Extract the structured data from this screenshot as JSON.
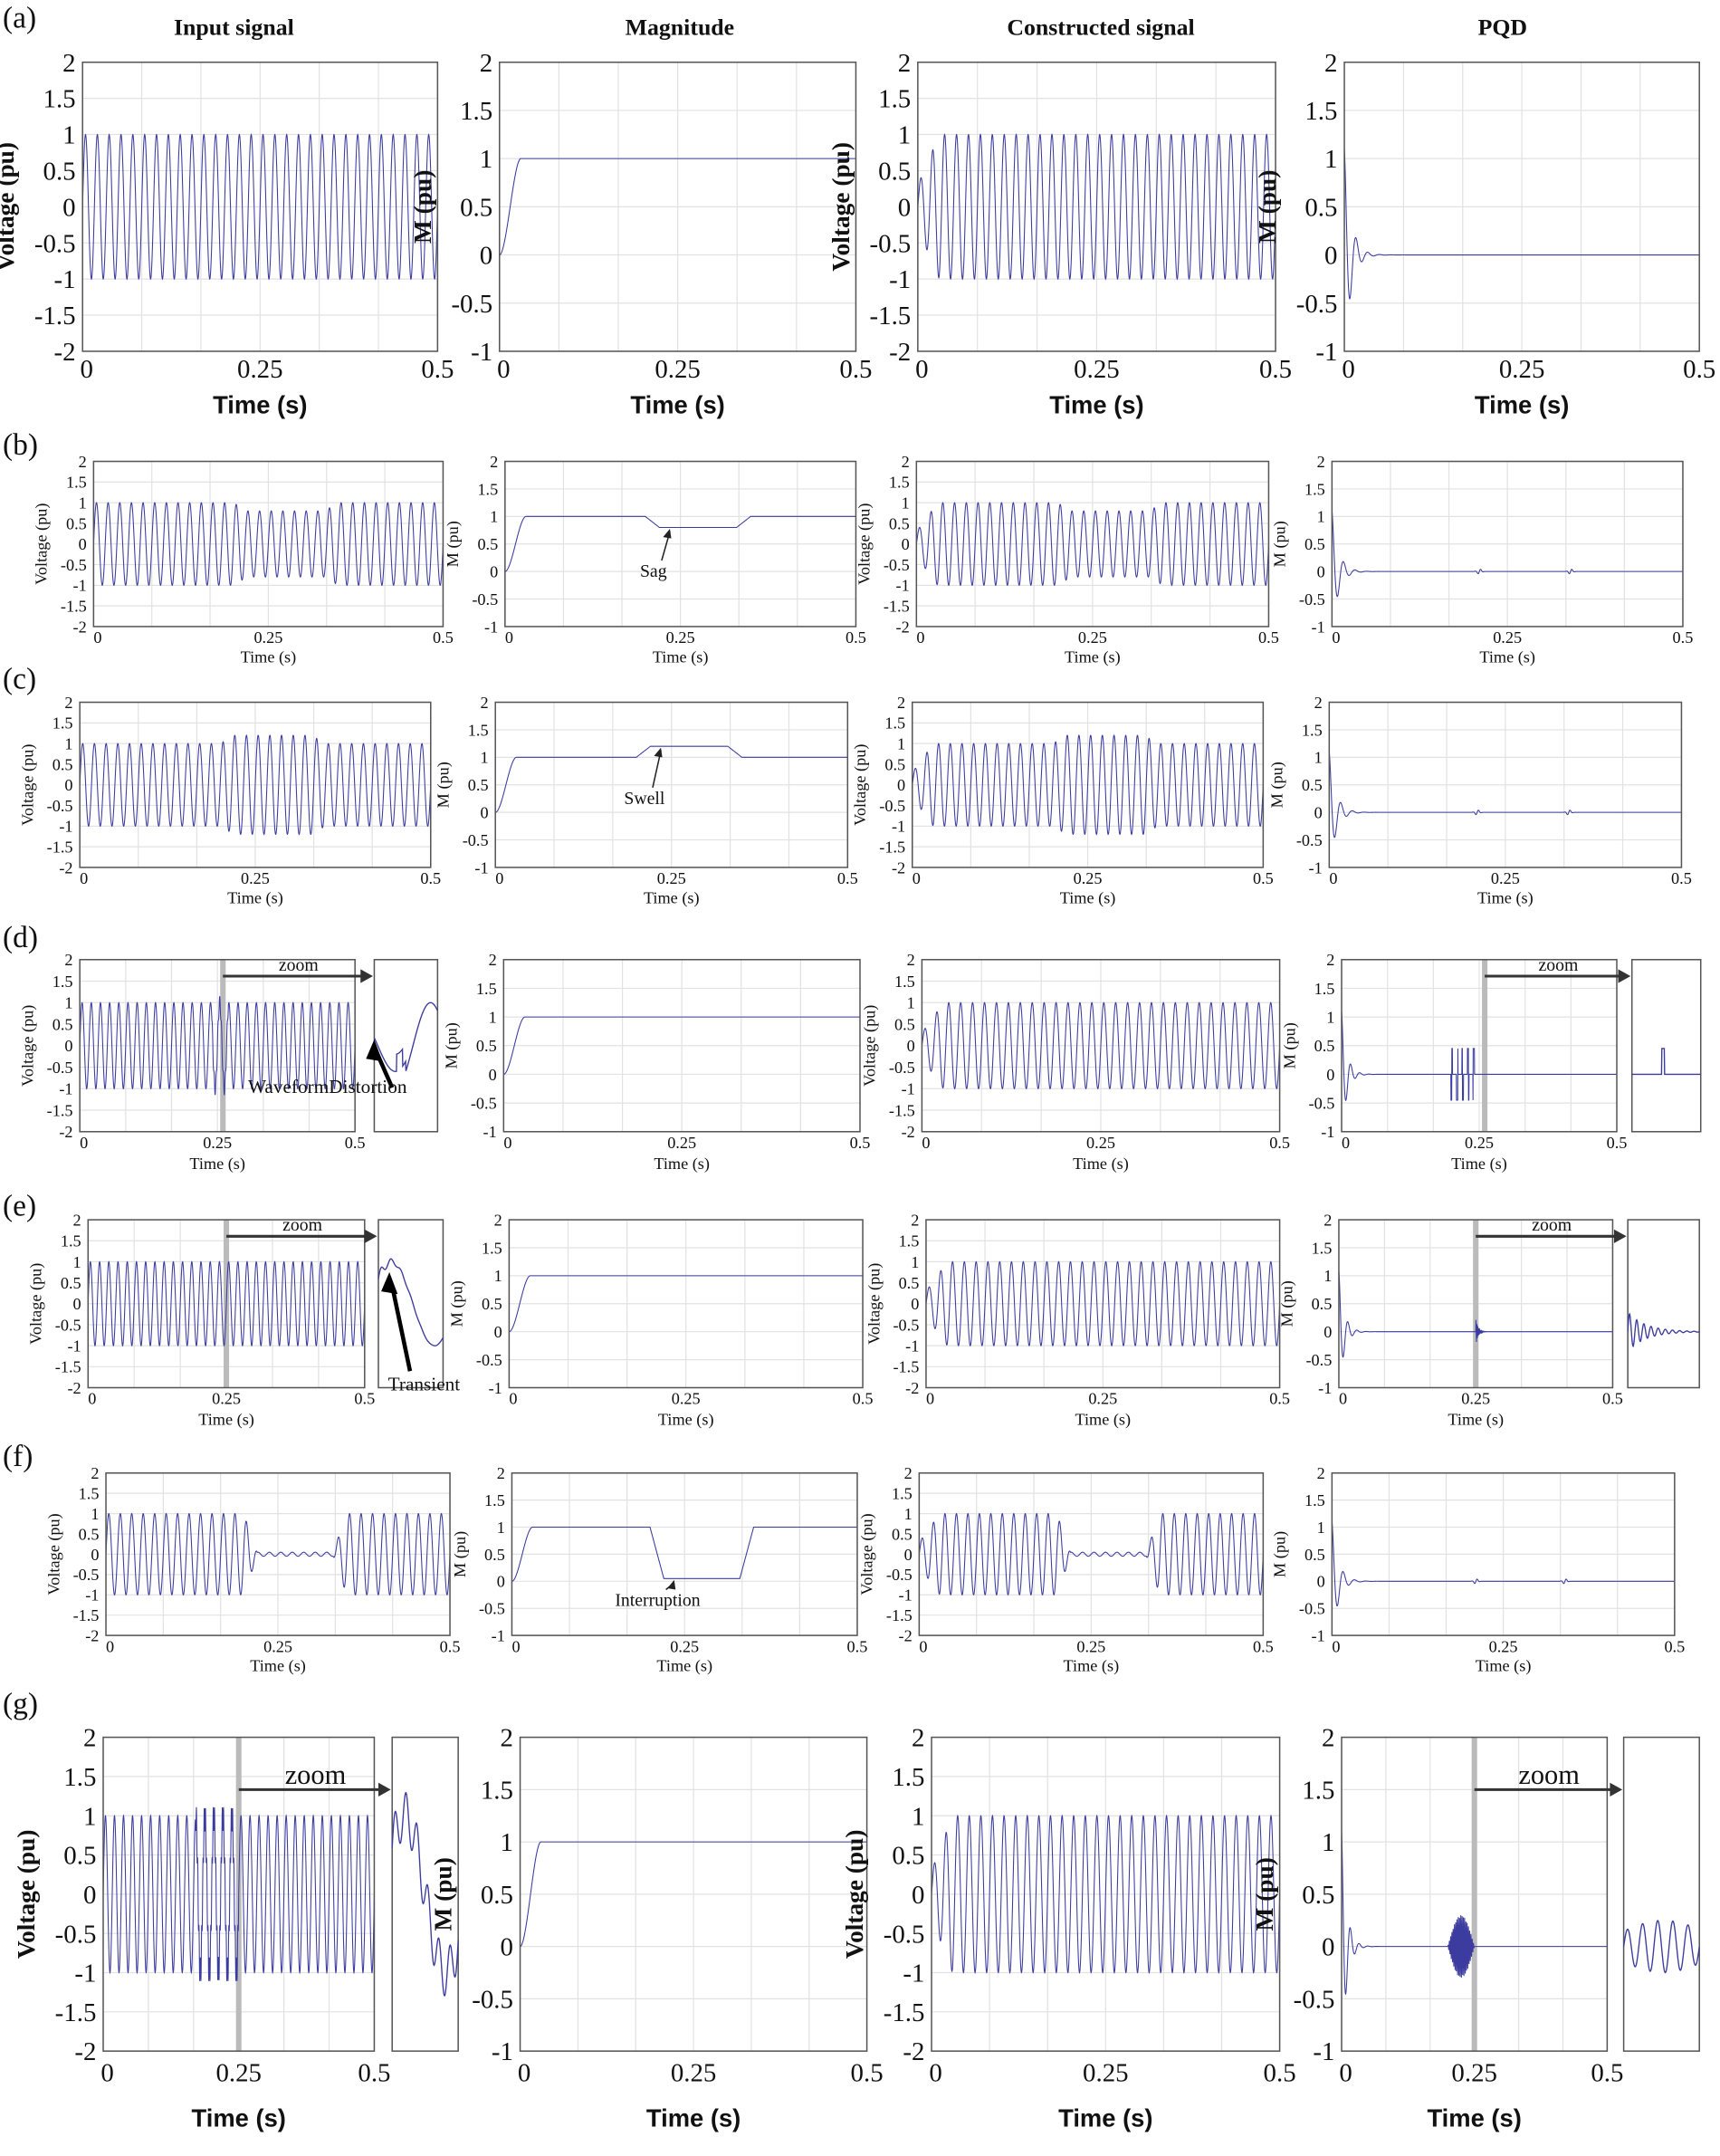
{
  "row_labels": [
    "(a)",
    "(b)",
    "(c)",
    "(d)",
    "(e)",
    "(f)",
    "(g)"
  ],
  "column_titles": [
    "Input signal",
    "Magnitude",
    "Constructed signal",
    "PQD"
  ],
  "xlabel": "Time (s)",
  "ylabel_voltage": "Voltage (pu)",
  "ylabel_magnitude": "M (pu)",
  "zoom_label": "zoom",
  "colors": {
    "trace": "#3c3ca0",
    "grid": "#e2e2e2",
    "frame": "#555555",
    "zoom_marker": "#bbbbbb"
  },
  "chart_data": [
    {
      "row": "(a)",
      "type": "line",
      "frequency_hz": 60,
      "envelope": [
        [
          0,
          1
        ],
        [
          0.5,
          1
        ]
      ],
      "annotation": ""
    },
    {
      "row": "(b)",
      "type": "line",
      "frequency_hz": 60,
      "envelope": [
        [
          0,
          1
        ],
        [
          0.2,
          1
        ],
        [
          0.22,
          0.8
        ],
        [
          0.33,
          0.8
        ],
        [
          0.35,
          1
        ],
        [
          0.5,
          1
        ]
      ],
      "annotation": "Sag",
      "pqd_events": [
        0.21,
        0.34
      ]
    },
    {
      "row": "(c)",
      "type": "line",
      "frequency_hz": 60,
      "envelope": [
        [
          0,
          1
        ],
        [
          0.2,
          1
        ],
        [
          0.22,
          1.2
        ],
        [
          0.33,
          1.2
        ],
        [
          0.35,
          1
        ],
        [
          0.5,
          1
        ]
      ],
      "annotation": "Swell",
      "pqd_events": [
        0.21,
        0.34
      ]
    },
    {
      "row": "(d)",
      "type": "line",
      "frequency_hz": 60,
      "envelope": [
        [
          0,
          1
        ],
        [
          0.5,
          1
        ]
      ],
      "annotation": "WaveformDistortion",
      "zoom_at": 0.26,
      "pqd_spikes": [
        0.2,
        0.21,
        0.22,
        0.23,
        0.24
      ]
    },
    {
      "row": "(e)",
      "type": "line",
      "frequency_hz": 60,
      "envelope": [
        [
          0,
          1
        ],
        [
          0.5,
          1
        ]
      ],
      "annotation": "Transient",
      "zoom_at": 0.25,
      "pqd_transient": 0.25
    },
    {
      "row": "(f)",
      "type": "line",
      "frequency_hz": 60,
      "envelope": [
        [
          0,
          1
        ],
        [
          0.2,
          1
        ],
        [
          0.22,
          0.05
        ],
        [
          0.33,
          0.05
        ],
        [
          0.35,
          1
        ],
        [
          0.5,
          1
        ]
      ],
      "annotation": "Interruption",
      "pqd_events": [
        0.21,
        0.34
      ]
    },
    {
      "row": "(g)",
      "type": "line",
      "frequency_hz": 60,
      "envelope": [
        [
          0,
          1
        ],
        [
          0.5,
          1
        ]
      ],
      "annotation": "",
      "zoom_at": 0.25,
      "pqd_burst": [
        0.2,
        0.25
      ]
    }
  ],
  "axes": {
    "xlim": [
      0,
      0.5
    ],
    "xticks": [
      "0",
      "0.25",
      "0.5"
    ],
    "voltage_ylim": [
      -2,
      2
    ],
    "voltage_yticks": [
      "-2",
      "-1.5",
      "-1",
      "-0.5",
      "0",
      "0.5",
      "1",
      "1.5",
      "2"
    ],
    "magnitude_ylim": [
      -1,
      2
    ],
    "magnitude_yticks": [
      "-1",
      "-0.5",
      "0",
      "0.5",
      "1",
      "1.5",
      "2"
    ],
    "grid": true
  }
}
